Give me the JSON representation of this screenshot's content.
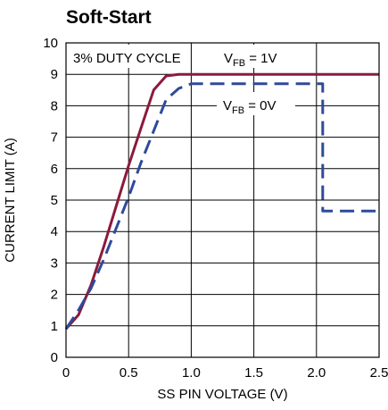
{
  "chart_data": {
    "type": "line",
    "title": "Soft-Start",
    "xlabel": "SS PIN VOLTAGE (V)",
    "ylabel": "CURRENT LIMIT (A)",
    "xlim": [
      0,
      2.5
    ],
    "ylim": [
      0,
      10
    ],
    "x_ticks": [
      "0",
      "0.5",
      "1.0",
      "1.5",
      "2.0",
      "2.5"
    ],
    "y_ticks": [
      "0",
      "1",
      "2",
      "3",
      "4",
      "5",
      "6",
      "7",
      "8",
      "9",
      "10"
    ],
    "grid": true,
    "annotations": {
      "duty_cycle": "3% DUTY CYCLE",
      "vfb1_main": "V",
      "vfb1_sub": "FB",
      "vfb1_rest": " = 1V",
      "vfb0_main": "V",
      "vfb0_sub": "FB",
      "vfb0_rest": " = 0V"
    },
    "series": [
      {
        "label": "VFB = 1V",
        "color": "#8b1a3c",
        "style": "solid",
        "x": [
          0,
          0.1,
          0.2,
          0.3,
          0.4,
          0.5,
          0.6,
          0.7,
          0.8,
          0.9,
          1.0,
          1.5,
          2.0,
          2.5
        ],
        "y": [
          0.9,
          1.35,
          2.3,
          3.5,
          4.8,
          6.1,
          7.3,
          8.5,
          8.95,
          9.0,
          9.0,
          9.0,
          9.0,
          9.0
        ]
      },
      {
        "label": "VFB = 0V",
        "color": "#2e4a9a",
        "style": "dashed",
        "x": [
          0,
          0.1,
          0.2,
          0.3,
          0.4,
          0.5,
          0.6,
          0.7,
          0.8,
          0.9,
          1.0,
          1.5,
          2.0,
          2.05,
          2.05,
          2.5
        ],
        "y": [
          0.9,
          1.5,
          2.2,
          3.1,
          4.1,
          5.1,
          6.2,
          7.2,
          8.2,
          8.55,
          8.7,
          8.7,
          8.7,
          8.7,
          4.65,
          4.65
        ]
      }
    ]
  }
}
